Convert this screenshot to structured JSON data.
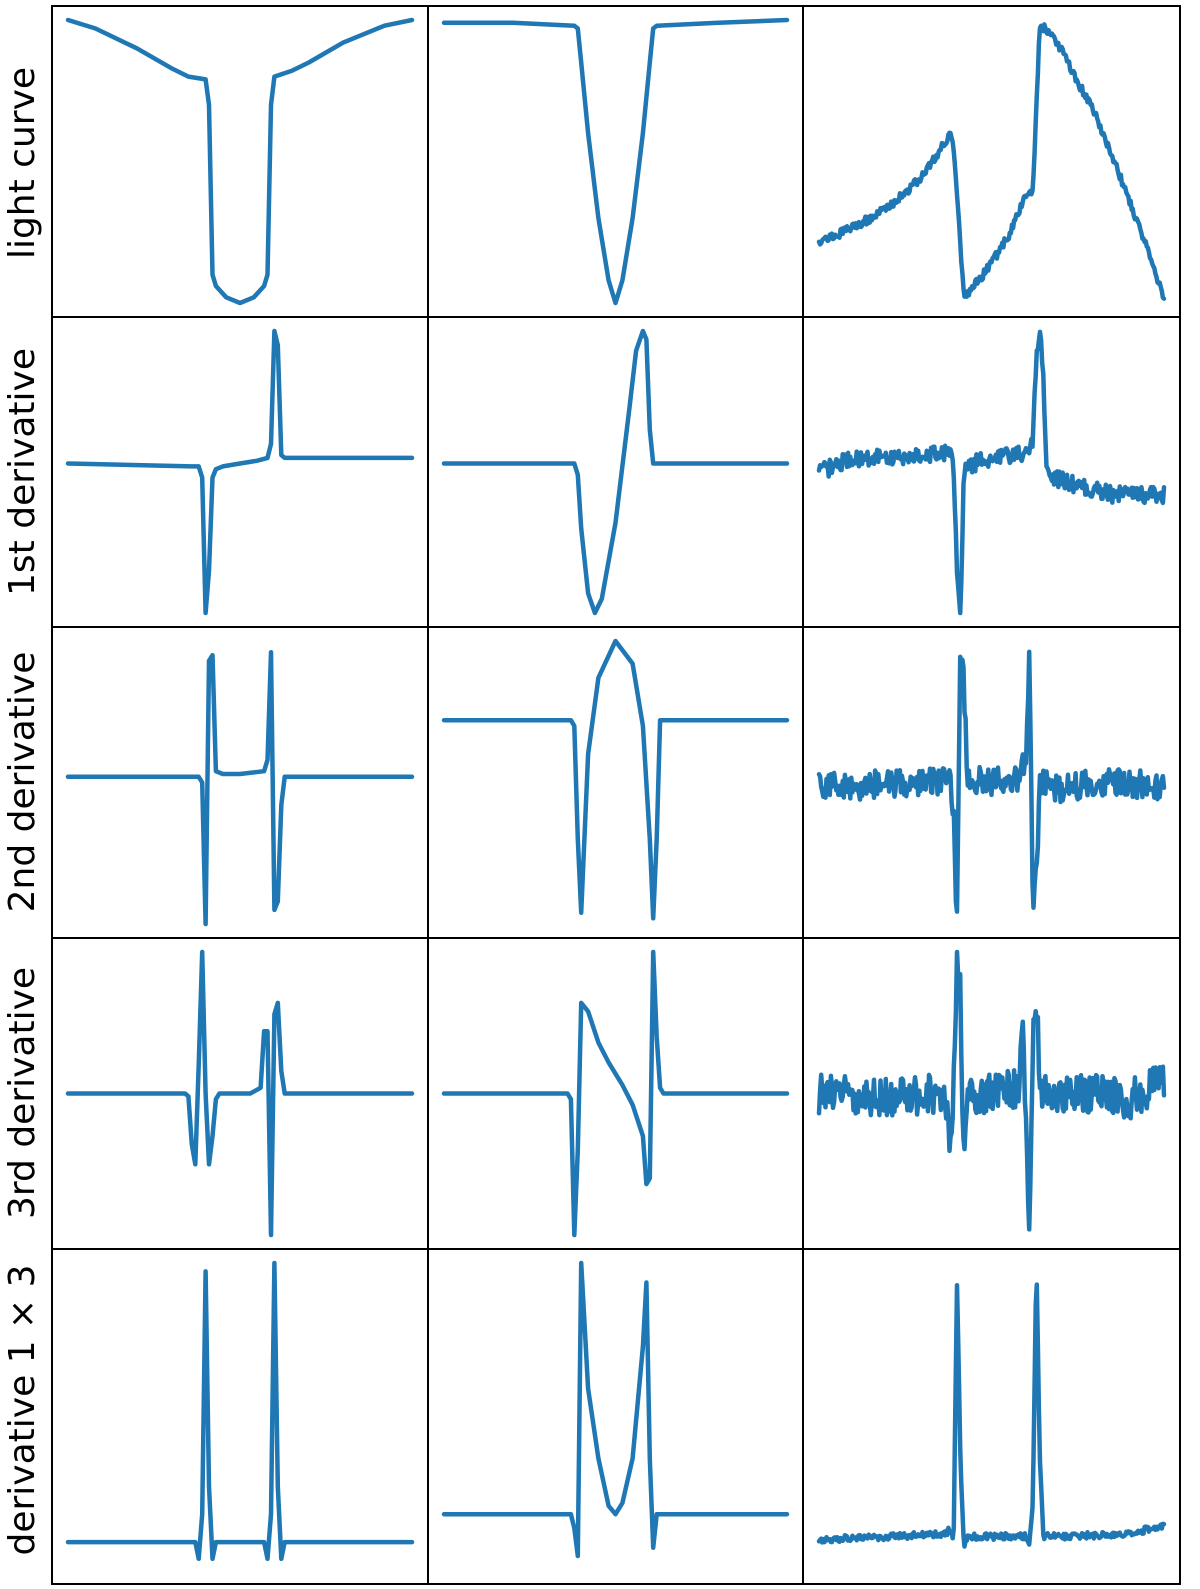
{
  "figure": {
    "row_labels": [
      "light curve",
      "1st derivative",
      "2nd derivative",
      "3rd derivative",
      "derivative 1 × 3"
    ],
    "line_color": "#1f77b4",
    "border_color": "#000000",
    "axes_visible": false
  },
  "chart_data": [
    {
      "type": "line",
      "row": "light curve",
      "column": 1,
      "x": [
        0,
        0.08,
        0.2,
        0.3,
        0.35,
        0.4,
        0.41,
        0.42,
        0.43,
        0.46,
        0.5,
        0.54,
        0.57,
        0.58,
        0.59,
        0.6,
        0.65,
        0.7,
        0.8,
        0.92,
        1
      ],
      "y": [
        1,
        0.97,
        0.9,
        0.83,
        0.8,
        0.79,
        0.7,
        0.1,
        0.06,
        0.02,
        0.0,
        0.02,
        0.06,
        0.1,
        0.7,
        0.8,
        0.82,
        0.85,
        0.92,
        0.98,
        1
      ],
      "ylim": [
        0,
        1
      ]
    },
    {
      "type": "line",
      "row": "light curve",
      "column": 2,
      "x": [
        0,
        0.2,
        0.38,
        0.39,
        0.4,
        0.42,
        0.45,
        0.48,
        0.5,
        0.52,
        0.55,
        0.58,
        0.6,
        0.61,
        0.62,
        0.8,
        1
      ],
      "y": [
        0.99,
        0.99,
        0.98,
        0.97,
        0.85,
        0.6,
        0.3,
        0.08,
        0.0,
        0.08,
        0.3,
        0.6,
        0.85,
        0.97,
        0.98,
        0.99,
        1
      ],
      "ylim": [
        0,
        1
      ]
    },
    {
      "type": "line",
      "row": "light curve",
      "column": 3,
      "x": [
        0,
        0.05,
        0.1,
        0.15,
        0.2,
        0.25,
        0.3,
        0.35,
        0.38,
        0.39,
        0.42,
        0.45,
        0.5,
        0.55,
        0.6,
        0.62,
        0.64,
        0.66,
        0.7,
        0.75,
        0.8,
        0.85,
        0.9,
        0.95,
        1
      ],
      "y": [
        0.22,
        0.24,
        0.27,
        0.3,
        0.34,
        0.39,
        0.45,
        0.54,
        0.6,
        0.55,
        0.02,
        0.06,
        0.14,
        0.24,
        0.38,
        0.4,
        0.98,
        0.97,
        0.9,
        0.78,
        0.67,
        0.52,
        0.36,
        0.2,
        0.02
      ],
      "ylim": [
        0,
        1
      ],
      "noise": 0.015
    },
    {
      "type": "line",
      "row": "1st derivative",
      "column": 1,
      "x": [
        0,
        0.36,
        0.38,
        0.39,
        0.4,
        0.41,
        0.42,
        0.43,
        0.45,
        0.5,
        0.55,
        0.58,
        0.59,
        0.6,
        0.61,
        0.62,
        0.63,
        0.64,
        0.66,
        0.7,
        1
      ],
      "y": [
        0.53,
        0.52,
        0.52,
        0.48,
        0.0,
        0.15,
        0.48,
        0.51,
        0.52,
        0.53,
        0.54,
        0.55,
        0.6,
        1.0,
        0.95,
        0.56,
        0.55,
        0.55,
        0.55,
        0.55,
        0.55
      ],
      "ylim": [
        0,
        1
      ]
    },
    {
      "type": "line",
      "row": "1st derivative",
      "column": 2,
      "x": [
        0,
        0.38,
        0.39,
        0.4,
        0.42,
        0.44,
        0.46,
        0.5,
        0.54,
        0.56,
        0.58,
        0.59,
        0.6,
        0.61,
        0.62,
        0.8,
        1
      ],
      "y": [
        0.53,
        0.53,
        0.49,
        0.3,
        0.07,
        0.0,
        0.05,
        0.32,
        0.72,
        0.93,
        1.0,
        0.97,
        0.65,
        0.53,
        0.53,
        0.53,
        0.53
      ],
      "ylim": [
        0,
        1
      ]
    },
    {
      "type": "line",
      "row": "1st derivative",
      "column": 3,
      "x": [
        0,
        0.1,
        0.2,
        0.3,
        0.38,
        0.39,
        0.4,
        0.41,
        0.42,
        0.45,
        0.5,
        0.55,
        0.6,
        0.62,
        0.63,
        0.64,
        0.65,
        0.66,
        0.68,
        0.75,
        0.85,
        0.95,
        1
      ],
      "y": [
        0.5,
        0.55,
        0.55,
        0.56,
        0.57,
        0.5,
        0.15,
        0.0,
        0.5,
        0.53,
        0.55,
        0.56,
        0.57,
        0.6,
        0.92,
        1.0,
        0.85,
        0.5,
        0.48,
        0.45,
        0.42,
        0.42,
        0.42
      ],
      "ylim": [
        0,
        1
      ],
      "noise": 0.03
    },
    {
      "type": "line",
      "row": "2nd derivative",
      "column": 1,
      "x": [
        0,
        0.38,
        0.39,
        0.4,
        0.41,
        0.42,
        0.43,
        0.45,
        0.5,
        0.57,
        0.58,
        0.59,
        0.6,
        0.61,
        0.62,
        0.63,
        0.64,
        1
      ],
      "y": [
        0.52,
        0.52,
        0.5,
        0.0,
        0.93,
        0.95,
        0.54,
        0.53,
        0.53,
        0.54,
        0.58,
        0.96,
        0.05,
        0.08,
        0.42,
        0.52,
        0.52,
        0.52
      ],
      "ylim": [
        0,
        1
      ]
    },
    {
      "type": "line",
      "row": "2nd derivative",
      "column": 2,
      "x": [
        0,
        0.37,
        0.38,
        0.39,
        0.4,
        0.42,
        0.45,
        0.5,
        0.55,
        0.58,
        0.6,
        0.61,
        0.62,
        0.63,
        0.8,
        1
      ],
      "y": [
        0.72,
        0.72,
        0.7,
        0.3,
        0.04,
        0.6,
        0.87,
        1.0,
        0.92,
        0.7,
        0.3,
        0.02,
        0.3,
        0.72,
        0.72,
        0.72
      ],
      "ylim": [
        0,
        1
      ]
    },
    {
      "type": "line",
      "row": "2nd derivative",
      "column": 3,
      "x": [
        0,
        0.1,
        0.2,
        0.35,
        0.38,
        0.39,
        0.4,
        0.41,
        0.42,
        0.43,
        0.5,
        0.58,
        0.6,
        0.61,
        0.62,
        0.63,
        0.64,
        0.65,
        0.7,
        0.8,
        0.9,
        1
      ],
      "y": [
        0.5,
        0.48,
        0.5,
        0.5,
        0.5,
        0.4,
        0.0,
        1.0,
        0.85,
        0.52,
        0.5,
        0.52,
        0.6,
        0.95,
        0.05,
        0.2,
        0.48,
        0.5,
        0.48,
        0.5,
        0.5,
        0.48
      ],
      "ylim": [
        0,
        1
      ],
      "noise": 0.05
    },
    {
      "type": "line",
      "row": "3rd derivative",
      "column": 1,
      "x": [
        0,
        0.34,
        0.35,
        0.36,
        0.37,
        0.38,
        0.39,
        0.4,
        0.41,
        0.42,
        0.43,
        0.44,
        0.46,
        0.53,
        0.56,
        0.57,
        0.58,
        0.59,
        0.6,
        0.61,
        0.62,
        0.63,
        0.65,
        1
      ],
      "y": [
        0.5,
        0.5,
        0.49,
        0.32,
        0.25,
        0.6,
        1.0,
        0.5,
        0.25,
        0.35,
        0.48,
        0.5,
        0.5,
        0.5,
        0.52,
        0.72,
        0.72,
        0.0,
        0.78,
        0.82,
        0.58,
        0.5,
        0.5,
        0.5
      ],
      "ylim": [
        0,
        1
      ]
    },
    {
      "type": "line",
      "row": "3rd derivative",
      "column": 2,
      "x": [
        0,
        0.36,
        0.37,
        0.38,
        0.39,
        0.4,
        0.42,
        0.45,
        0.48,
        0.5,
        0.52,
        0.55,
        0.58,
        0.59,
        0.6,
        0.61,
        0.62,
        0.63,
        0.64,
        0.65,
        0.8,
        1
      ],
      "y": [
        0.5,
        0.5,
        0.48,
        0.0,
        0.3,
        0.82,
        0.79,
        0.68,
        0.61,
        0.57,
        0.53,
        0.46,
        0.35,
        0.18,
        0.2,
        1.0,
        0.7,
        0.52,
        0.5,
        0.5,
        0.5,
        0.5
      ],
      "ylim": [
        0,
        1
      ]
    },
    {
      "type": "line",
      "row": "3rd derivative",
      "column": 3,
      "x": [
        0,
        0.1,
        0.2,
        0.35,
        0.37,
        0.38,
        0.39,
        0.4,
        0.41,
        0.42,
        0.43,
        0.44,
        0.45,
        0.5,
        0.58,
        0.59,
        0.6,
        0.61,
        0.62,
        0.63,
        0.64,
        0.65,
        0.7,
        0.8,
        0.9,
        1
      ],
      "y": [
        0.5,
        0.5,
        0.48,
        0.5,
        0.45,
        0.25,
        0.5,
        1.0,
        0.85,
        0.2,
        0.45,
        0.5,
        0.5,
        0.5,
        0.52,
        0.78,
        0.4,
        0.0,
        0.7,
        0.85,
        0.55,
        0.5,
        0.5,
        0.5,
        0.48,
        0.55
      ],
      "ylim": [
        0,
        1
      ],
      "noise": 0.07
    },
    {
      "type": "line",
      "row": "derivative 1 × 3",
      "column": 1,
      "x": [
        0,
        0.36,
        0.37,
        0.38,
        0.39,
        0.4,
        0.41,
        0.42,
        0.43,
        0.45,
        0.55,
        0.57,
        0.58,
        0.59,
        0.6,
        0.61,
        0.62,
        0.63,
        0.65,
        1
      ],
      "y": [
        0.0,
        0.0,
        0.0,
        -0.06,
        0.1,
        0.97,
        0.2,
        -0.06,
        0.0,
        0.0,
        0.0,
        0.0,
        -0.06,
        0.1,
        1.0,
        0.2,
        -0.06,
        0.0,
        0.0,
        0.0
      ],
      "ylim": [
        -0.1,
        1
      ]
    },
    {
      "type": "line",
      "row": "derivative 1 × 3",
      "column": 2,
      "x": [
        0,
        0.37,
        0.38,
        0.39,
        0.4,
        0.42,
        0.45,
        0.48,
        0.5,
        0.52,
        0.55,
        0.58,
        0.59,
        0.6,
        0.61,
        0.62,
        0.63,
        0.8,
        1
      ],
      "y": [
        0.1,
        0.1,
        0.05,
        -0.05,
        1.0,
        0.55,
        0.3,
        0.13,
        0.1,
        0.14,
        0.3,
        0.7,
        0.93,
        0.3,
        -0.02,
        0.1,
        0.1,
        0.1,
        0.1
      ],
      "ylim": [
        -0.1,
        1
      ]
    },
    {
      "type": "line",
      "row": "derivative 1 × 3",
      "column": 3,
      "x": [
        0,
        0.2,
        0.37,
        0.38,
        0.39,
        0.4,
        0.41,
        0.42,
        0.43,
        0.45,
        0.55,
        0.6,
        0.61,
        0.62,
        0.63,
        0.64,
        0.65,
        0.7,
        0.9,
        1
      ],
      "y": [
        0.01,
        0.02,
        0.03,
        0.05,
        0.0,
        0.93,
        0.3,
        -0.03,
        0.02,
        0.02,
        0.02,
        0.02,
        0.0,
        0.15,
        1.0,
        0.3,
        0.02,
        0.02,
        0.03,
        0.06
      ],
      "ylim": [
        -0.1,
        1
      ],
      "noise": 0.012
    }
  ]
}
